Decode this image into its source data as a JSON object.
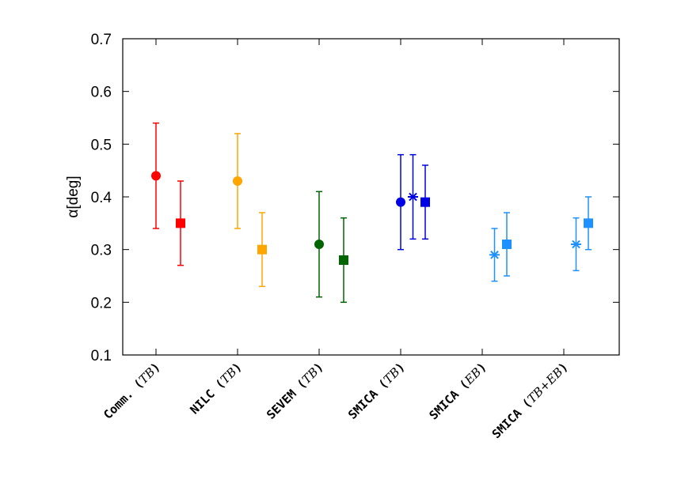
{
  "chart_data": {
    "type": "scatter",
    "ylabel": "α[deg]",
    "ylim": [
      0.1,
      0.7
    ],
    "yticks": [
      "0.1",
      "0.2",
      "0.3",
      "0.4",
      "0.5",
      "0.6",
      "0.7"
    ],
    "grid": false,
    "categories": [
      {
        "name": "Comm.",
        "sub": "TB"
      },
      {
        "name": "NILC",
        "sub": "TB"
      },
      {
        "name": "SEVEM",
        "sub": "TB"
      },
      {
        "name": "SMICA",
        "sub": "TB"
      },
      {
        "name": "SMICA",
        "sub": "EB"
      },
      {
        "name": "SMICA",
        "sub": "TB+EB"
      }
    ],
    "points": [
      {
        "category": 0,
        "offset": 0,
        "marker": "circle",
        "color": "#ff0000",
        "y": 0.44,
        "ylow": 0.34,
        "yhigh": 0.54
      },
      {
        "category": 0,
        "offset": 1,
        "marker": "square",
        "color": "#ff0000",
        "y": 0.35,
        "ylow": 0.27,
        "yhigh": 0.43
      },
      {
        "category": 1,
        "offset": 0,
        "marker": "circle",
        "color": "#ffa500",
        "y": 0.43,
        "ylow": 0.34,
        "yhigh": 0.52
      },
      {
        "category": 1,
        "offset": 1,
        "marker": "square",
        "color": "#ffa500",
        "y": 0.3,
        "ylow": 0.23,
        "yhigh": 0.37
      },
      {
        "category": 2,
        "offset": 0,
        "marker": "circle",
        "color": "#006400",
        "y": 0.31,
        "ylow": 0.21,
        "yhigh": 0.41
      },
      {
        "category": 2,
        "offset": 1,
        "marker": "square",
        "color": "#006400",
        "y": 0.28,
        "ylow": 0.2,
        "yhigh": 0.36
      },
      {
        "category": 3,
        "offset": 0,
        "marker": "circle",
        "color": "#0000e6",
        "y": 0.39,
        "ylow": 0.3,
        "yhigh": 0.48
      },
      {
        "category": 3,
        "offset": 0.5,
        "marker": "star",
        "color": "#0000e6",
        "y": 0.4,
        "ylow": 0.32,
        "yhigh": 0.48
      },
      {
        "category": 3,
        "offset": 1,
        "marker": "square",
        "color": "#0000e6",
        "y": 0.39,
        "ylow": 0.32,
        "yhigh": 0.46
      },
      {
        "category": 4,
        "offset": 0.5,
        "marker": "star",
        "color": "#1e90ff",
        "y": 0.29,
        "ylow": 0.24,
        "yhigh": 0.34
      },
      {
        "category": 4,
        "offset": 1,
        "marker": "square",
        "color": "#1e90ff",
        "y": 0.31,
        "ylow": 0.25,
        "yhigh": 0.37
      },
      {
        "category": 5,
        "offset": 0.5,
        "marker": "star",
        "color": "#1e90ff",
        "y": 0.31,
        "ylow": 0.26,
        "yhigh": 0.36
      },
      {
        "category": 5,
        "offset": 1,
        "marker": "square",
        "color": "#1e90ff",
        "y": 0.35,
        "ylow": 0.3,
        "yhigh": 0.4
      }
    ]
  }
}
